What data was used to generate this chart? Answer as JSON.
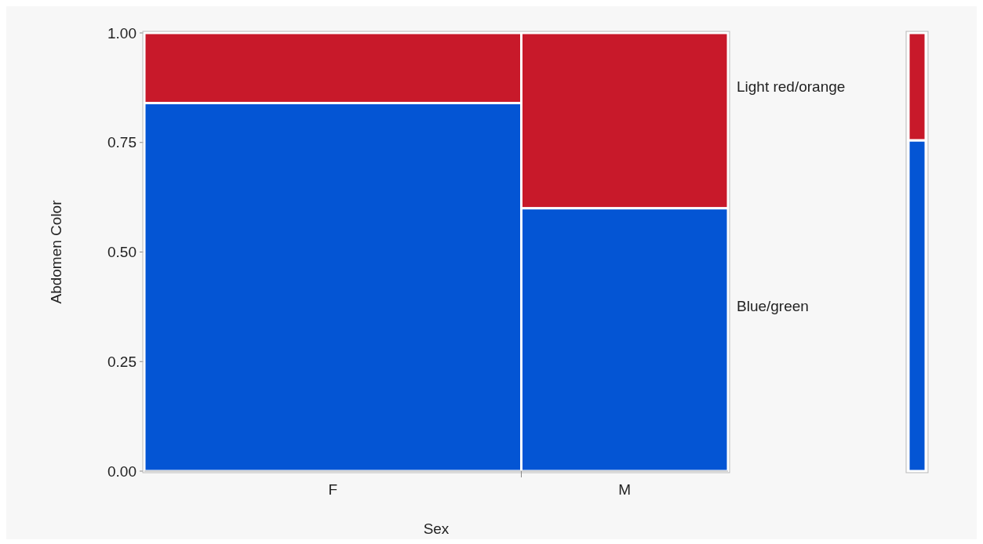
{
  "chart_data": {
    "type": "bar",
    "stacked": true,
    "xlabel": "Sex",
    "ylabel": "Abdomen Color",
    "categories": [
      "F",
      "M",
      null
    ],
    "series": [
      {
        "name": "Blue/green",
        "color": "#0455d4",
        "values": [
          0.84,
          0.6,
          0.755
        ]
      },
      {
        "name": "Light red/orange",
        "color": "#c8192a",
        "values": [
          0.16,
          0.4,
          0.245
        ]
      }
    ],
    "ylim": [
      0,
      1
    ],
    "yticks": [
      {
        "value": 0,
        "label": "0.00"
      },
      {
        "value": 0.25,
        "label": "0.25"
      },
      {
        "value": 0.5,
        "label": "0.50"
      },
      {
        "value": 0.75,
        "label": "0.75"
      },
      {
        "value": 1,
        "label": "1.00"
      }
    ],
    "legend": false
  }
}
